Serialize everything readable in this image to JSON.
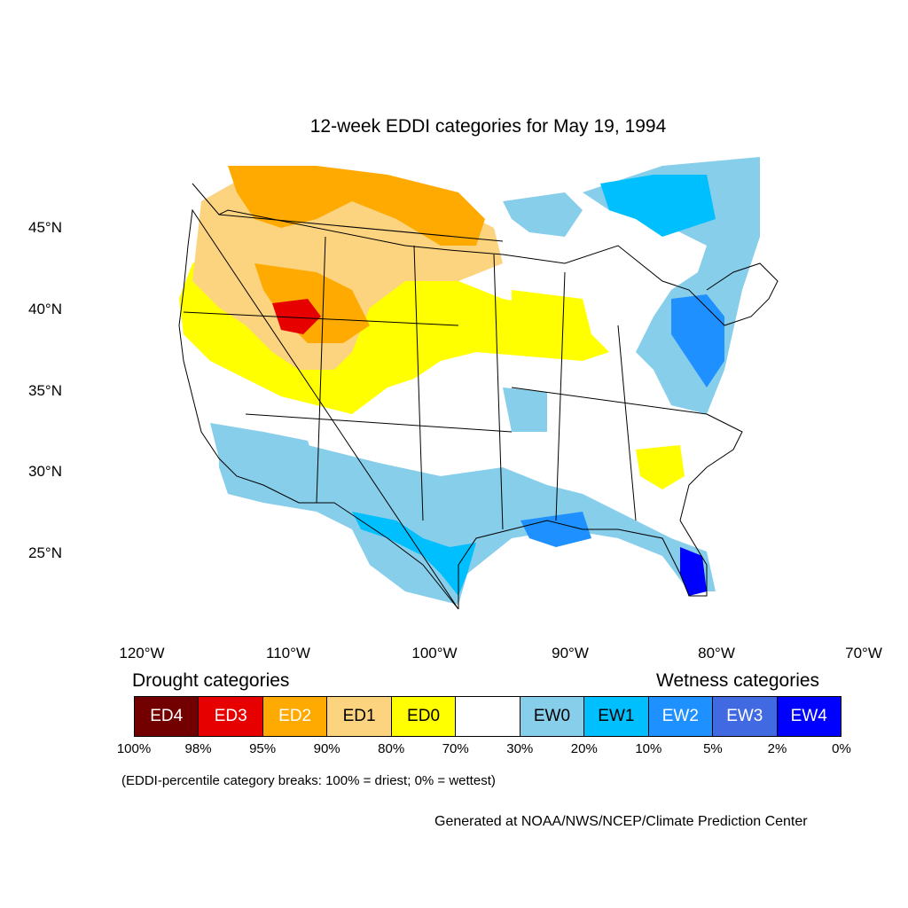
{
  "title": "12-week EDDI categories for May 19, 1994",
  "lat_labels": [
    "45°N",
    "40°N",
    "35°N",
    "30°N",
    "25°N"
  ],
  "lon_labels": [
    "120°W",
    "110°W",
    "100°W",
    "90°W",
    "80°W",
    "70°W"
  ],
  "legend": {
    "drought_heading": "Drought categories",
    "wetness_heading": "Wetness categories",
    "categories": [
      {
        "label": "ED4",
        "color": "#730000",
        "text_color": "#ffffff"
      },
      {
        "label": "ED3",
        "color": "#e60000",
        "text_color": "#ffffff"
      },
      {
        "label": "ED2",
        "color": "#ffaa00",
        "text_color": "#ffffff"
      },
      {
        "label": "ED1",
        "color": "#fcd37f",
        "text_color": "#000000"
      },
      {
        "label": "ED0",
        "color": "#ffff00",
        "text_color": "#000000"
      },
      {
        "label": "",
        "color": "#ffffff",
        "text_color": "#000000"
      },
      {
        "label": "EW0",
        "color": "#87ceeb",
        "text_color": "#000000"
      },
      {
        "label": "EW1",
        "color": "#00bfff",
        "text_color": "#000000"
      },
      {
        "label": "EW2",
        "color": "#1e90ff",
        "text_color": "#ffffff"
      },
      {
        "label": "EW3",
        "color": "#4169e1",
        "text_color": "#ffffff"
      },
      {
        "label": "EW4",
        "color": "#0000ff",
        "text_color": "#ffffff"
      }
    ],
    "breaks": [
      "100%",
      "98%",
      "95%",
      "90%",
      "80%",
      "70%",
      "30%",
      "20%",
      "10%",
      "5%",
      "2%",
      "0%"
    ]
  },
  "note": "(EDDI-percentile category breaks: 100% = driest; 0% = wettest)",
  "credit": "Generated at NOAA/NWS/NCEP/Climate Prediction Center"
}
